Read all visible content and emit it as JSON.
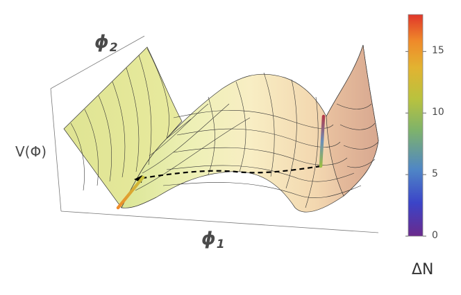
{
  "axes": {
    "phi1": {
      "symbol": "ϕ",
      "sub": "1"
    },
    "phi2": {
      "symbol": "ϕ",
      "sub": "2"
    },
    "v": "V(Φ)"
  },
  "colorbar": {
    "title": "ΔN",
    "min": 0,
    "max": 18,
    "ticks": [
      "0",
      "5",
      "10",
      "15"
    ],
    "tick_values": [
      0,
      5,
      10,
      15
    ],
    "colors": [
      "#6a2a8c",
      "#3b44c8",
      "#4f86c6",
      "#7fb36a",
      "#b9c23e",
      "#e2b331",
      "#ef8a2a",
      "#e0362a"
    ]
  },
  "surface": {
    "shading_low": "#f6e6c2",
    "shading_high": "#e5b79a",
    "tint_left": "#dfe79a",
    "mesh_color": "#333333"
  },
  "trajectory": {
    "style": "dashed",
    "color": "#000000"
  }
}
